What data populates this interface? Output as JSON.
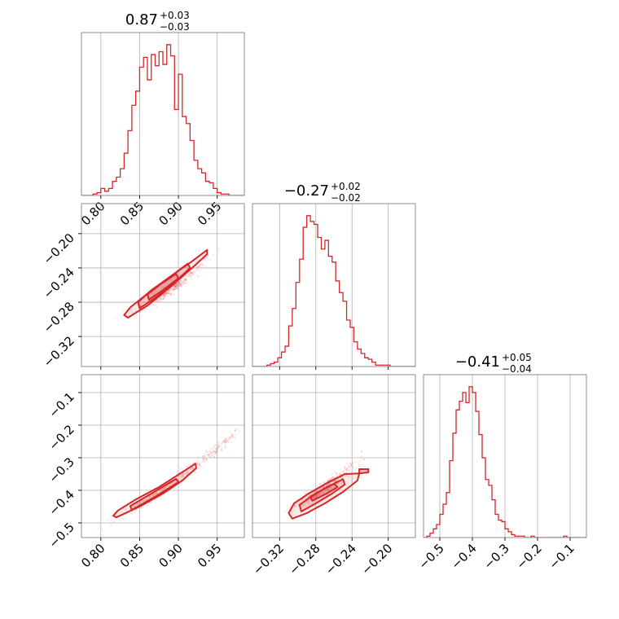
{
  "figure": {
    "accent_color": "#d62728",
    "grid_color": "#b0b0b0",
    "frame_color": "#808080"
  },
  "chart_data": [
    {
      "id": "hist-p1",
      "type": "histogram",
      "title": {
        "value": "0.87",
        "plus": "+0.03",
        "minus": "−0.03"
      },
      "xlim": [
        0.775,
        0.985
      ],
      "grid_x": [
        0.8,
        0.85,
        0.9,
        0.95
      ],
      "ticks_x": [
        0.8,
        0.85,
        0.9,
        0.95
      ],
      "bins": [
        [
          0.775,
          0.0
        ],
        [
          0.78,
          0.0
        ],
        [
          0.785,
          0.0
        ],
        [
          0.79,
          0.01
        ],
        [
          0.795,
          0.02
        ],
        [
          0.8,
          0.05
        ],
        [
          0.805,
          0.03
        ],
        [
          0.81,
          0.05
        ],
        [
          0.815,
          0.1
        ],
        [
          0.82,
          0.13
        ],
        [
          0.825,
          0.19
        ],
        [
          0.83,
          0.3
        ],
        [
          0.835,
          0.46
        ],
        [
          0.84,
          0.64
        ],
        [
          0.845,
          0.74
        ],
        [
          0.85,
          0.91
        ],
        [
          0.855,
          0.98
        ],
        [
          0.86,
          0.82
        ],
        [
          0.865,
          1.0
        ],
        [
          0.87,
          0.92
        ],
        [
          0.875,
          1.02
        ],
        [
          0.88,
          0.93
        ],
        [
          0.885,
          1.07
        ],
        [
          0.89,
          0.99
        ],
        [
          0.895,
          0.61
        ],
        [
          0.9,
          0.86
        ],
        [
          0.905,
          0.56
        ],
        [
          0.91,
          0.51
        ],
        [
          0.915,
          0.39
        ],
        [
          0.92,
          0.25
        ],
        [
          0.925,
          0.19
        ],
        [
          0.93,
          0.16
        ],
        [
          0.935,
          0.1
        ],
        [
          0.94,
          0.09
        ],
        [
          0.945,
          0.05
        ],
        [
          0.95,
          0.02
        ],
        [
          0.955,
          0.01
        ],
        [
          0.96,
          0.01
        ],
        [
          0.965,
          0.0
        ],
        [
          0.97,
          0.0
        ],
        [
          0.975,
          0.0
        ],
        [
          0.98,
          0.0
        ]
      ]
    },
    {
      "id": "hist-p2",
      "type": "histogram",
      "title": {
        "value": "−0.27",
        "plus": "+0.02",
        "minus": "−0.02"
      },
      "xlim": [
        -0.35,
        -0.17
      ],
      "grid_x": [
        -0.32,
        -0.28,
        -0.24,
        -0.2
      ],
      "ticks_x": [],
      "bins": [
        [
          -0.35,
          0.0
        ],
        [
          -0.346,
          0.0
        ],
        [
          -0.342,
          0.0
        ],
        [
          -0.338,
          0.0
        ],
        [
          -0.334,
          0.01
        ],
        [
          -0.33,
          0.02
        ],
        [
          -0.326,
          0.03
        ],
        [
          -0.322,
          0.06
        ],
        [
          -0.318,
          0.1
        ],
        [
          -0.314,
          0.14
        ],
        [
          -0.31,
          0.28
        ],
        [
          -0.306,
          0.4
        ],
        [
          -0.302,
          0.58
        ],
        [
          -0.298,
          0.74
        ],
        [
          -0.294,
          0.96
        ],
        [
          -0.29,
          1.04
        ],
        [
          -0.286,
          1.0
        ],
        [
          -0.282,
          0.98
        ],
        [
          -0.278,
          0.89
        ],
        [
          -0.274,
          0.81
        ],
        [
          -0.27,
          0.87
        ],
        [
          -0.266,
          0.76
        ],
        [
          -0.262,
          0.72
        ],
        [
          -0.258,
          0.59
        ],
        [
          -0.254,
          0.51
        ],
        [
          -0.25,
          0.45
        ],
        [
          -0.246,
          0.32
        ],
        [
          -0.242,
          0.27
        ],
        [
          -0.238,
          0.17
        ],
        [
          -0.234,
          0.12
        ],
        [
          -0.23,
          0.09
        ],
        [
          -0.226,
          0.06
        ],
        [
          -0.222,
          0.05
        ],
        [
          -0.218,
          0.03
        ],
        [
          -0.214,
          0.01
        ],
        [
          -0.21,
          0.01
        ],
        [
          -0.206,
          0.01
        ],
        [
          -0.202,
          0.01
        ],
        [
          -0.198,
          0.0
        ],
        [
          -0.194,
          0.0
        ],
        [
          -0.19,
          0.0
        ],
        [
          -0.186,
          0.0
        ],
        [
          -0.182,
          0.0
        ],
        [
          -0.178,
          0.0
        ],
        [
          -0.174,
          0.0
        ]
      ]
    },
    {
      "id": "hist-p3",
      "type": "histogram",
      "title": {
        "value": "−0.41",
        "plus": "+0.05",
        "minus": "−0.04"
      },
      "xlim": [
        -0.55,
        -0.05
      ],
      "grid_x": [
        -0.5,
        -0.4,
        -0.3,
        -0.2,
        -0.1
      ],
      "ticks_x": [
        -0.5,
        -0.4,
        -0.3,
        -0.2,
        -0.1
      ],
      "bins": [
        [
          -0.55,
          0.0
        ],
        [
          -0.54,
          0.01
        ],
        [
          -0.53,
          0.03
        ],
        [
          -0.52,
          0.06
        ],
        [
          -0.51,
          0.09
        ],
        [
          -0.5,
          0.16
        ],
        [
          -0.49,
          0.23
        ],
        [
          -0.48,
          0.31
        ],
        [
          -0.47,
          0.53
        ],
        [
          -0.46,
          0.72
        ],
        [
          -0.45,
          0.88
        ],
        [
          -0.44,
          0.94
        ],
        [
          -0.43,
          1.0
        ],
        [
          -0.42,
          0.93
        ],
        [
          -0.41,
          1.04
        ],
        [
          -0.4,
          1.0
        ],
        [
          -0.39,
          0.87
        ],
        [
          -0.38,
          0.71
        ],
        [
          -0.37,
          0.55
        ],
        [
          -0.36,
          0.4
        ],
        [
          -0.35,
          0.36
        ],
        [
          -0.34,
          0.26
        ],
        [
          -0.33,
          0.16
        ],
        [
          -0.32,
          0.12
        ],
        [
          -0.31,
          0.11
        ],
        [
          -0.3,
          0.06
        ],
        [
          -0.29,
          0.04
        ],
        [
          -0.28,
          0.02
        ],
        [
          -0.27,
          0.01
        ],
        [
          -0.26,
          0.01
        ],
        [
          -0.25,
          0.01
        ],
        [
          -0.24,
          0.0
        ],
        [
          -0.23,
          0.0
        ],
        [
          -0.22,
          0.01
        ],
        [
          -0.21,
          0.0
        ],
        [
          -0.2,
          0.0
        ],
        [
          -0.19,
          0.0
        ],
        [
          -0.18,
          0.0
        ],
        [
          -0.17,
          0.0
        ],
        [
          -0.16,
          0.0
        ],
        [
          -0.15,
          0.0
        ],
        [
          -0.14,
          0.0
        ],
        [
          -0.13,
          0.0
        ],
        [
          -0.12,
          0.01
        ],
        [
          -0.11,
          0.0
        ],
        [
          -0.1,
          0.0
        ],
        [
          -0.09,
          0.0
        ],
        [
          -0.08,
          0.0
        ],
        [
          -0.07,
          0.0
        ],
        [
          -0.06,
          0.0
        ]
      ]
    },
    {
      "id": "scatter-p1-p2",
      "type": "scatter",
      "xlim": [
        0.775,
        0.985
      ],
      "ylim": [
        -0.355,
        -0.165
      ],
      "grid_x": [
        0.8,
        0.85,
        0.9,
        0.95
      ],
      "grid_y": [
        -0.32,
        -0.28,
        -0.24,
        -0.2
      ],
      "ticks_x": [],
      "ticks_y": [
        -0.32,
        -0.28,
        -0.24,
        -0.2
      ],
      "trend": {
        "x": [
          0.83,
          0.86,
          0.89,
          0.92,
          0.95
        ],
        "y": [
          -0.295,
          -0.283,
          -0.265,
          -0.243,
          -0.218
        ]
      },
      "contours": [
        [
          [
            0.835,
            -0.298
          ],
          [
            0.86,
            -0.284
          ],
          [
            0.89,
            -0.262
          ],
          [
            0.92,
            -0.238
          ],
          [
            0.937,
            -0.224
          ],
          [
            0.937,
            -0.219
          ],
          [
            0.918,
            -0.232
          ],
          [
            0.888,
            -0.251
          ],
          [
            0.86,
            -0.27
          ],
          [
            0.838,
            -0.286
          ],
          [
            0.83,
            -0.295
          ],
          [
            0.835,
            -0.298
          ]
        ],
        [
          [
            0.85,
            -0.287
          ],
          [
            0.87,
            -0.275
          ],
          [
            0.895,
            -0.257
          ],
          [
            0.915,
            -0.24
          ],
          [
            0.912,
            -0.235
          ],
          [
            0.89,
            -0.25
          ],
          [
            0.865,
            -0.266
          ],
          [
            0.848,
            -0.28
          ],
          [
            0.85,
            -0.287
          ]
        ],
        [
          [
            0.862,
            -0.277
          ],
          [
            0.88,
            -0.266
          ],
          [
            0.9,
            -0.252
          ],
          [
            0.897,
            -0.247
          ],
          [
            0.877,
            -0.259
          ],
          [
            0.86,
            -0.271
          ],
          [
            0.862,
            -0.277
          ]
        ]
      ]
    },
    {
      "id": "scatter-p1-p3",
      "type": "scatter",
      "xlim": [
        0.775,
        0.985
      ],
      "ylim": [
        -0.545,
        -0.045
      ],
      "grid_x": [
        0.8,
        0.85,
        0.9,
        0.95
      ],
      "grid_y": [
        -0.5,
        -0.4,
        -0.3,
        -0.2,
        -0.1
      ],
      "ticks_x": [
        0.8,
        0.85,
        0.9,
        0.95
      ],
      "ticks_y": [
        -0.5,
        -0.4,
        -0.3,
        -0.2,
        -0.1
      ],
      "trend": {
        "x": [
          0.8,
          0.84,
          0.88,
          0.92,
          0.96,
          0.975
        ],
        "y": [
          -0.51,
          -0.46,
          -0.4,
          -0.33,
          -0.25,
          -0.22
        ]
      },
      "contours": [
        [
          [
            0.82,
            -0.483
          ],
          [
            0.85,
            -0.45
          ],
          [
            0.88,
            -0.41
          ],
          [
            0.905,
            -0.37
          ],
          [
            0.923,
            -0.332
          ],
          [
            0.922,
            -0.318
          ],
          [
            0.9,
            -0.352
          ],
          [
            0.875,
            -0.39
          ],
          [
            0.845,
            -0.428
          ],
          [
            0.822,
            -0.462
          ],
          [
            0.816,
            -0.478
          ],
          [
            0.82,
            -0.483
          ]
        ],
        [
          [
            0.84,
            -0.46
          ],
          [
            0.87,
            -0.42
          ],
          [
            0.9,
            -0.375
          ],
          [
            0.897,
            -0.365
          ],
          [
            0.868,
            -0.406
          ],
          [
            0.838,
            -0.448
          ],
          [
            0.84,
            -0.46
          ]
        ]
      ]
    },
    {
      "id": "scatter-p2-p3",
      "type": "scatter",
      "xlim": [
        -0.35,
        -0.17
      ],
      "ylim": [
        -0.545,
        -0.045
      ],
      "grid_x": [
        -0.32,
        -0.28,
        -0.24,
        -0.2
      ],
      "grid_y": [
        -0.5,
        -0.4,
        -0.3,
        -0.2,
        -0.1
      ],
      "ticks_x": [
        -0.32,
        -0.28,
        -0.24,
        -0.2
      ],
      "ticks_y": [],
      "trend": {
        "x": [
          -0.31,
          -0.29,
          -0.27,
          -0.25,
          -0.23
        ],
        "y": [
          -0.46,
          -0.43,
          -0.39,
          -0.35,
          -0.3
        ]
      },
      "contours": [
        [
          [
            -0.306,
            -0.487
          ],
          [
            -0.29,
            -0.47
          ],
          [
            -0.27,
            -0.44
          ],
          [
            -0.25,
            -0.405
          ],
          [
            -0.234,
            -0.37
          ],
          [
            -0.232,
            -0.348
          ],
          [
            -0.248,
            -0.35
          ],
          [
            -0.268,
            -0.378
          ],
          [
            -0.288,
            -0.41
          ],
          [
            -0.304,
            -0.44
          ],
          [
            -0.31,
            -0.47
          ],
          [
            -0.306,
            -0.487
          ]
        ],
        [
          [
            -0.296,
            -0.465
          ],
          [
            -0.28,
            -0.44
          ],
          [
            -0.262,
            -0.41
          ],
          [
            -0.248,
            -0.382
          ],
          [
            -0.25,
            -0.366
          ],
          [
            -0.266,
            -0.388
          ],
          [
            -0.284,
            -0.416
          ],
          [
            -0.298,
            -0.445
          ],
          [
            -0.296,
            -0.465
          ]
        ],
        [
          [
            -0.284,
            -0.432
          ],
          [
            -0.268,
            -0.41
          ],
          [
            -0.256,
            -0.39
          ],
          [
            -0.26,
            -0.38
          ],
          [
            -0.274,
            -0.4
          ],
          [
            -0.286,
            -0.422
          ],
          [
            -0.284,
            -0.432
          ]
        ],
        [
          [
            -0.232,
            -0.348
          ],
          [
            -0.222,
            -0.345
          ],
          [
            -0.222,
            -0.335
          ],
          [
            -0.232,
            -0.335
          ],
          [
            -0.232,
            -0.348
          ]
        ]
      ]
    }
  ]
}
